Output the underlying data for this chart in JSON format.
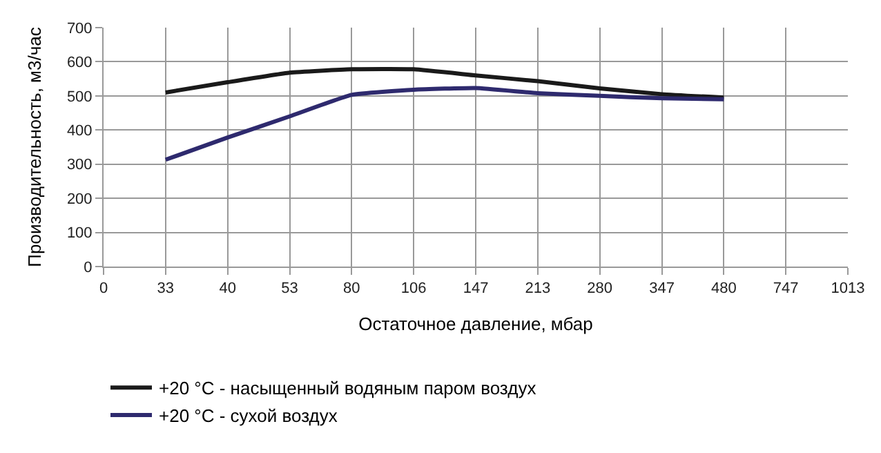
{
  "chart_data": {
    "type": "line",
    "xlabel": "Остаточное давление, мбар",
    "ylabel": "Производительность, м3/час",
    "categories": [
      "0",
      "33",
      "40",
      "53",
      "80",
      "106",
      "147",
      "213",
      "280",
      "347",
      "480",
      "747",
      "1013"
    ],
    "series": [
      {
        "name": "+20 °C - насыщенный водяным паром воздух",
        "color": "#1a1a1a",
        "values": [
          null,
          510,
          540,
          568,
          578,
          578,
          560,
          543,
          522,
          505,
          495,
          null,
          null
        ]
      },
      {
        "name": "+20 °C - сухой воздух",
        "color": "#2e2a6e",
        "values": [
          null,
          313,
          378,
          440,
          503,
          518,
          523,
          508,
          500,
          493,
          490,
          null,
          null
        ]
      }
    ],
    "ylim": [
      0,
      700
    ],
    "yticks": [
      0,
      100,
      200,
      300,
      400,
      500,
      600,
      700
    ],
    "grid": true,
    "legend": "bottom left",
    "marker": "none",
    "line_style": "solid"
  }
}
